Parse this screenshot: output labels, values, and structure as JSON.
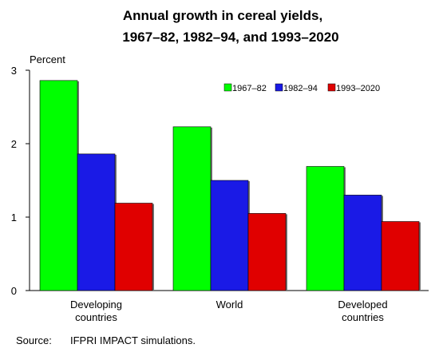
{
  "chart_data": {
    "type": "bar",
    "title_lines": [
      "Annual growth in cereal yields,",
      "1967–82, 1982–94, and 1993–2020"
    ],
    "ylabel": "Percent",
    "ylim": [
      0,
      3
    ],
    "yticks": [
      "0",
      "1",
      "2",
      "3"
    ],
    "categories": [
      [
        "Developing",
        "countries"
      ],
      [
        "World"
      ],
      [
        "Developed",
        "countries"
      ]
    ],
    "series": [
      {
        "name": "1967–82",
        "color": "#00ff00",
        "values": [
          2.86,
          2.23,
          1.69
        ]
      },
      {
        "name": "1982–94",
        "color": "#1a1ae6",
        "values": [
          1.86,
          1.5,
          1.3
        ]
      },
      {
        "name": "1993–2020",
        "color": "#e00000",
        "values": [
          1.19,
          1.05,
          0.94
        ]
      }
    ],
    "legend_position": "top-right",
    "grid": false
  },
  "source": {
    "label": "Source:",
    "text": "IFPRI IMPACT simulations."
  }
}
